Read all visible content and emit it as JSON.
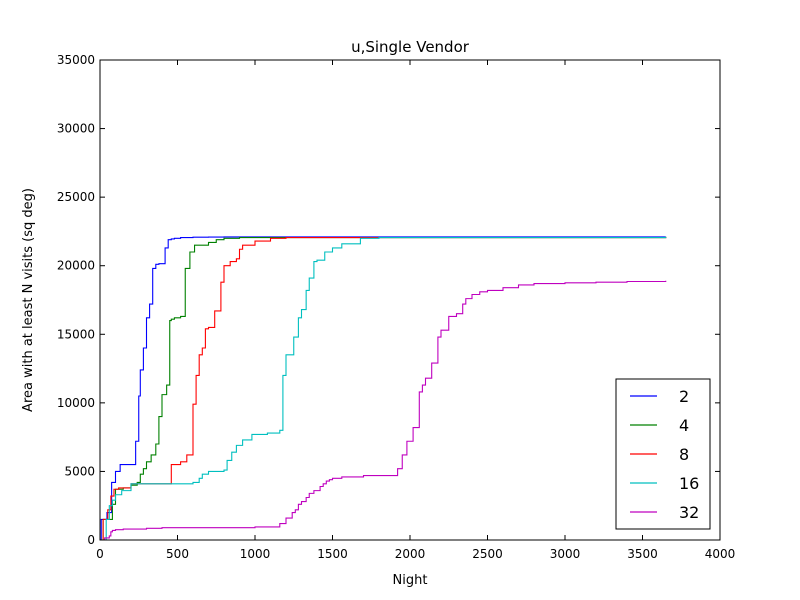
{
  "chart_data": {
    "type": "line",
    "step": true,
    "title": "u,Single Vendor",
    "xlabel": "Night",
    "ylabel": "Area with at least N visits (sq deg)",
    "xlim": [
      0,
      4000
    ],
    "ylim": [
      0,
      35000
    ],
    "xticks": [
      0,
      500,
      1000,
      1500,
      2000,
      2500,
      3000,
      3500,
      4000
    ],
    "yticks": [
      0,
      5000,
      10000,
      15000,
      20000,
      25000,
      30000,
      35000
    ],
    "xtick_labels": [
      "0",
      "500",
      "1000",
      "1500",
      "2000",
      "2500",
      "3000",
      "3500",
      "4000"
    ],
    "ytick_labels": [
      "0",
      "5000",
      "10000",
      "15000",
      "20000",
      "25000",
      "30000",
      "35000"
    ],
    "grid": false,
    "legend_position": "bottom-right",
    "series": [
      {
        "name": "2",
        "color": "#0000ff",
        "x": [
          0,
          8,
          15,
          30,
          45,
          60,
          75,
          100,
          130,
          180,
          230,
          250,
          260,
          280,
          300,
          320,
          340,
          360,
          380,
          420,
          440,
          460,
          480,
          520,
          600,
          700,
          800,
          1000,
          3650
        ],
        "y": [
          0,
          1500,
          1500,
          1500,
          2000,
          2000,
          4200,
          5000,
          5500,
          5500,
          7200,
          10500,
          12400,
          14000,
          16200,
          17200,
          19800,
          20100,
          20150,
          21300,
          21900,
          21950,
          22000,
          22050,
          22080,
          22090,
          22100,
          22100,
          22100
        ]
      },
      {
        "name": "4",
        "color": "#008000",
        "x": [
          0,
          20,
          40,
          60,
          80,
          100,
          150,
          200,
          240,
          260,
          280,
          300,
          330,
          360,
          380,
          400,
          430,
          450,
          460,
          480,
          520,
          550,
          580,
          610,
          700,
          750,
          800,
          900,
          3650
        ],
        "y": [
          0,
          1500,
          1500,
          1500,
          2600,
          3700,
          3800,
          4000,
          4200,
          4800,
          5200,
          5700,
          6200,
          7000,
          9000,
          10600,
          11300,
          16000,
          16100,
          16200,
          16300,
          19800,
          21000,
          21500,
          21700,
          21900,
          22000,
          22050,
          22100
        ]
      },
      {
        "name": "8",
        "color": "#ff0000",
        "x": [
          0,
          20,
          50,
          70,
          90,
          120,
          150,
          200,
          300,
          400,
          460,
          520,
          560,
          600,
          620,
          640,
          660,
          680,
          700,
          740,
          780,
          800,
          840,
          880,
          900,
          920,
          1000,
          1100,
          1200,
          3650
        ],
        "y": [
          0,
          1500,
          2200,
          3200,
          3700,
          3800,
          3800,
          4100,
          4100,
          4100,
          5500,
          5700,
          6200,
          9900,
          12000,
          13500,
          14000,
          15400,
          15500,
          16700,
          18800,
          20000,
          20300,
          20500,
          21200,
          21500,
          21800,
          22000,
          22050,
          22100
        ]
      },
      {
        "name": "16",
        "color": "#00bfbf",
        "x": [
          0,
          40,
          60,
          80,
          100,
          140,
          200,
          300,
          500,
          600,
          640,
          660,
          700,
          800,
          820,
          850,
          880,
          920,
          980,
          1080,
          1160,
          1180,
          1200,
          1250,
          1280,
          1300,
          1330,
          1350,
          1380,
          1400,
          1450,
          1500,
          1560,
          1600,
          1680,
          1800,
          3650
        ],
        "y": [
          0,
          1500,
          2500,
          2900,
          3300,
          3600,
          4100,
          4100,
          4100,
          4200,
          4500,
          4800,
          5000,
          5100,
          5800,
          6400,
          6900,
          7300,
          7700,
          7800,
          8000,
          12000,
          13500,
          14800,
          16200,
          16800,
          18200,
          19100,
          20300,
          20400,
          21000,
          21300,
          21600,
          21600,
          22000,
          22050,
          22100
        ]
      },
      {
        "name": "32",
        "color": "#bf00bf",
        "x": [
          0,
          30,
          60,
          70,
          80,
          100,
          150,
          200,
          300,
          400,
          500,
          1000,
          1160,
          1200,
          1240,
          1260,
          1280,
          1300,
          1330,
          1350,
          1380,
          1420,
          1440,
          1460,
          1480,
          1500,
          1560,
          1700,
          1920,
          1950,
          1980,
          2020,
          2060,
          2080,
          2100,
          2140,
          2180,
          2200,
          2250,
          2300,
          2340,
          2360,
          2400,
          2450,
          2500,
          2600,
          2700,
          2800,
          3000,
          3200,
          3400,
          3650
        ],
        "y": [
          0,
          150,
          300,
          600,
          700,
          750,
          800,
          800,
          850,
          900,
          900,
          950,
          1200,
          1600,
          2000,
          2200,
          2600,
          2800,
          3100,
          3400,
          3600,
          3900,
          4100,
          4300,
          4400,
          4500,
          4600,
          4700,
          5200,
          6200,
          7200,
          8200,
          10800,
          11300,
          11800,
          12900,
          14800,
          15300,
          16300,
          16500,
          17200,
          17600,
          17900,
          18100,
          18200,
          18400,
          18600,
          18700,
          18750,
          18800,
          18850,
          18900
        ]
      }
    ]
  }
}
